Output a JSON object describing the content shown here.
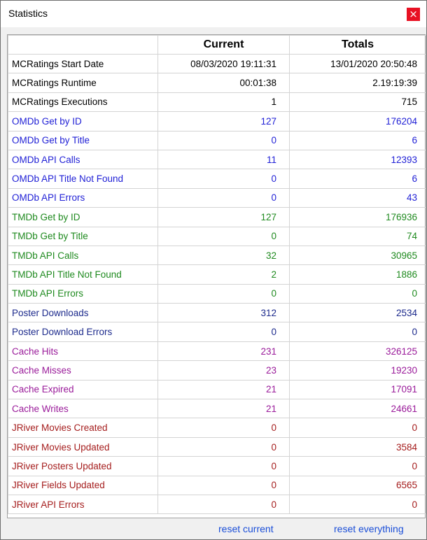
{
  "window": {
    "title": "Statistics",
    "close_symbol": "×"
  },
  "table": {
    "headers": [
      "",
      "Current",
      "Totals"
    ],
    "rows": [
      {
        "label": "MCRatings Start Date",
        "current": "08/03/2020 19:11:31",
        "totals": "13/01/2020 20:50:48",
        "group": "black"
      },
      {
        "label": "MCRatings Runtime",
        "current": "00:01:38",
        "totals": "2.19:19:39",
        "group": "black"
      },
      {
        "label": "MCRatings Executions",
        "current": "1",
        "totals": "715",
        "group": "black"
      },
      {
        "label": "OMDb Get by ID",
        "current": "127",
        "totals": "176204",
        "group": "omdb"
      },
      {
        "label": "OMDb Get by Title",
        "current": "0",
        "totals": "6",
        "group": "omdb"
      },
      {
        "label": "OMDb API Calls",
        "current": "11",
        "totals": "12393",
        "group": "omdb"
      },
      {
        "label": "OMDb API Title Not Found",
        "current": "0",
        "totals": "6",
        "group": "omdb"
      },
      {
        "label": "OMDb API Errors",
        "current": "0",
        "totals": "43",
        "group": "omdb"
      },
      {
        "label": "TMDb Get by ID",
        "current": "127",
        "totals": "176936",
        "group": "tmdb"
      },
      {
        "label": "TMDb Get by Title",
        "current": "0",
        "totals": "74",
        "group": "tmdb"
      },
      {
        "label": "TMDb API Calls",
        "current": "32",
        "totals": "30965",
        "group": "tmdb"
      },
      {
        "label": "TMDb API Title Not Found",
        "current": "2",
        "totals": "1886",
        "group": "tmdb"
      },
      {
        "label": "TMDb API Errors",
        "current": "0",
        "totals": "0",
        "group": "tmdb"
      },
      {
        "label": "Poster Downloads",
        "current": "312",
        "totals": "2534",
        "group": "poster"
      },
      {
        "label": "Poster Download Errors",
        "current": "0",
        "totals": "0",
        "group": "poster"
      },
      {
        "label": "Cache Hits",
        "current": "231",
        "totals": "326125",
        "group": "cache"
      },
      {
        "label": "Cache Misses",
        "current": "23",
        "totals": "19230",
        "group": "cache"
      },
      {
        "label": "Cache Expired",
        "current": "21",
        "totals": "17091",
        "group": "cache"
      },
      {
        "label": "Cache Writes",
        "current": "21",
        "totals": "24661",
        "group": "cache"
      },
      {
        "label": "JRiver Movies Created",
        "current": "0",
        "totals": "0",
        "group": "jriver"
      },
      {
        "label": "JRiver Movies Updated",
        "current": "0",
        "totals": "3584",
        "group": "jriver"
      },
      {
        "label": "JRiver Posters Updated",
        "current": "0",
        "totals": "0",
        "group": "jriver"
      },
      {
        "label": "JRiver Fields Updated",
        "current": "0",
        "totals": "6565",
        "group": "jriver"
      },
      {
        "label": "JRiver API Errors",
        "current": "0",
        "totals": "0",
        "group": "jriver"
      }
    ]
  },
  "links": {
    "reset_current": "reset current",
    "reset_everything": "reset everything"
  },
  "colors": {
    "black": "#000000",
    "omdb": "#1f1fd6",
    "tmdb": "#1f8a1f",
    "poster": "#1c2a8c",
    "cache": "#9a1b9a",
    "jriver": "#a51d1d",
    "close_button": "#e81123",
    "link": "#1a4ed8"
  }
}
